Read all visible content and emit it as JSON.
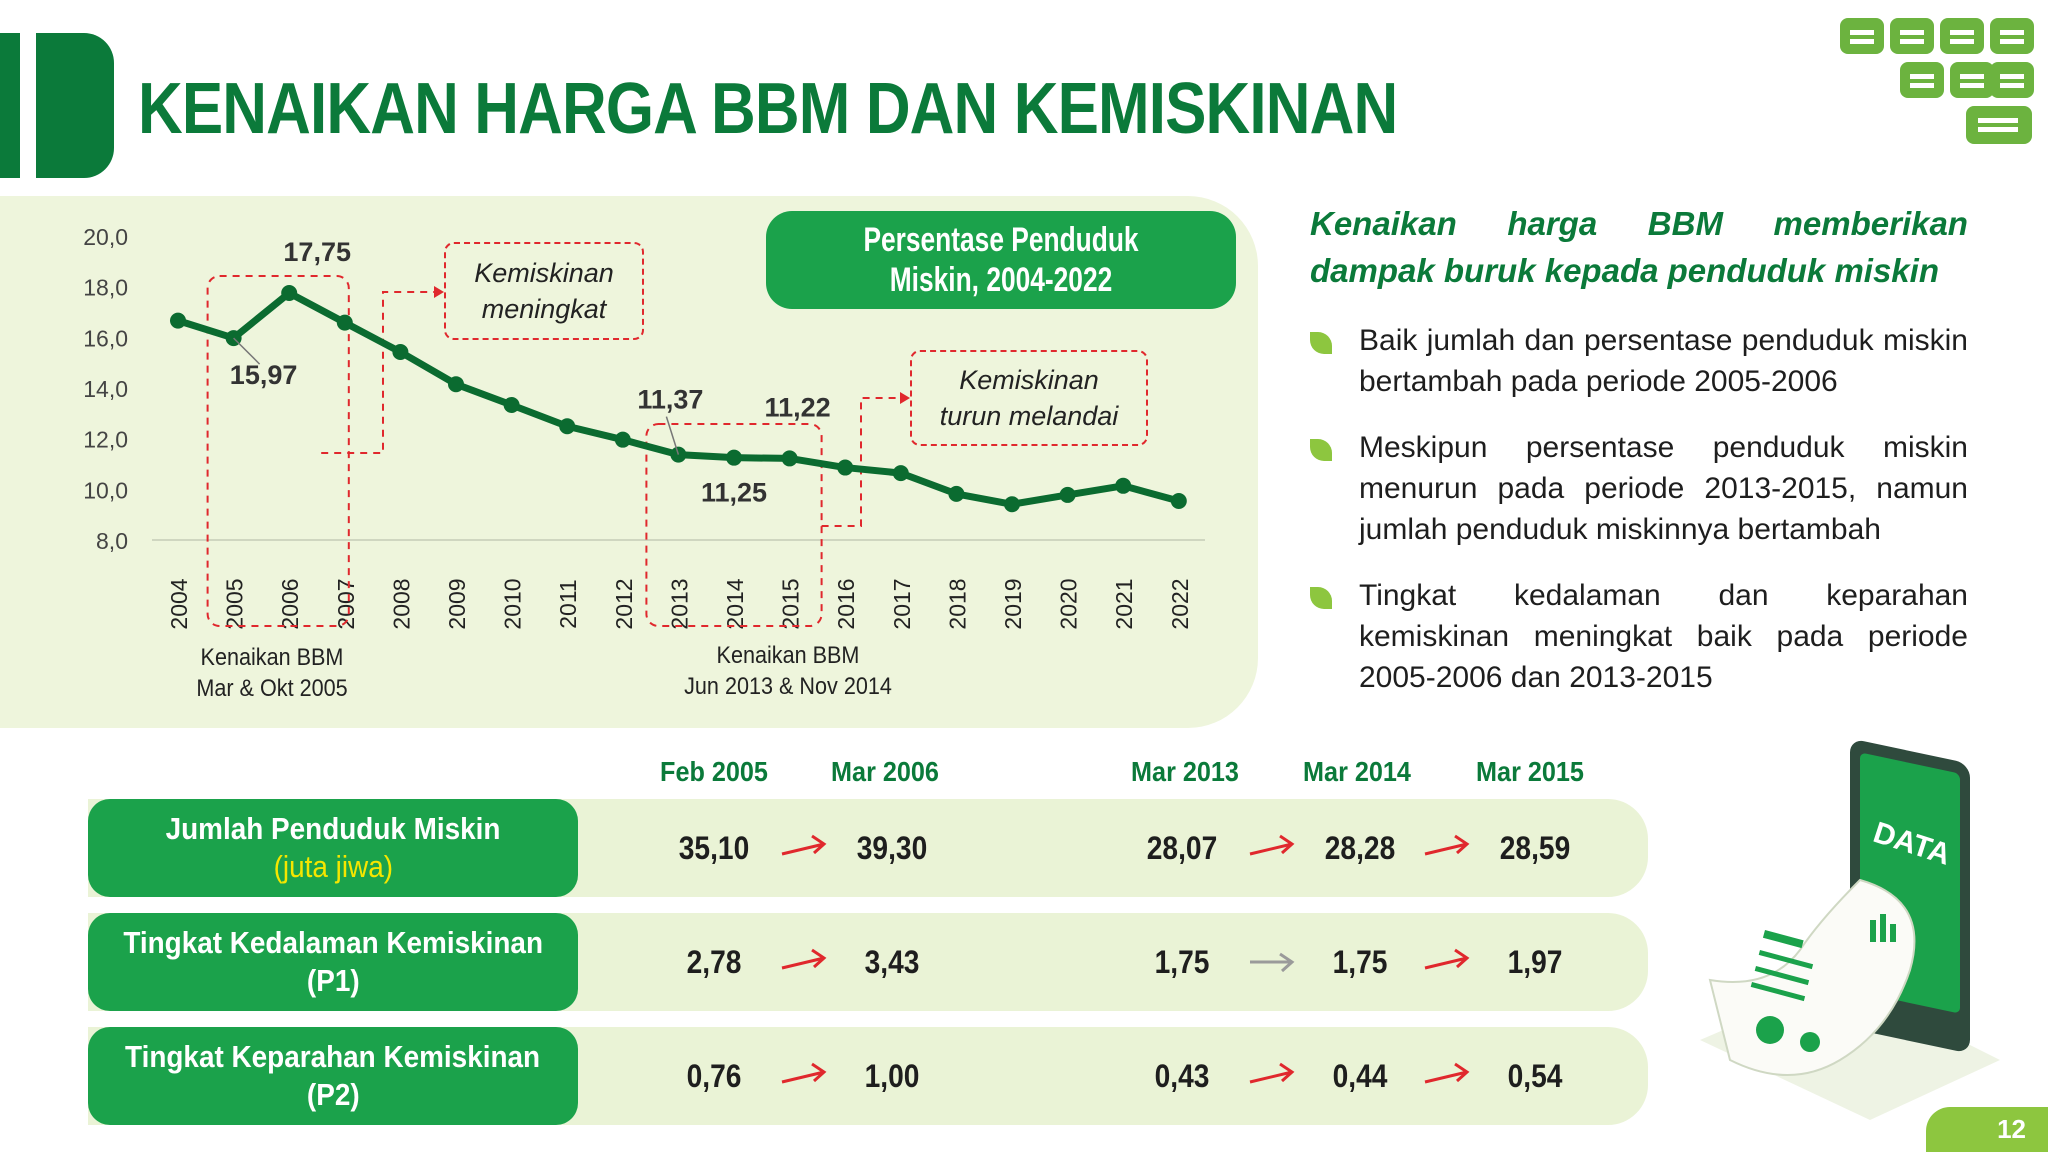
{
  "title": "KENAIKAN HARGA BBM DAN KEMISKINAN",
  "page_number": "12",
  "colors": {
    "dark_green": "#0b7a3a",
    "green": "#1ba24b",
    "light_green": "#8dc63f",
    "panel": "#eef5dc",
    "red_dash": "#e0282d",
    "yellow": "#f5e600"
  },
  "chart_data": {
    "type": "line",
    "title": "Persentase Penduduk Miskin, 2004-2022",
    "x": [
      "2004",
      "2005",
      "2006",
      "2007",
      "2008",
      "2009",
      "2010",
      "2011",
      "2012",
      "2013",
      "2014",
      "2015",
      "2016",
      "2017",
      "2018",
      "2019",
      "2020",
      "2021",
      "2022"
    ],
    "series": [
      {
        "values": [
          16.66,
          15.97,
          17.75,
          16.58,
          15.42,
          14.15,
          13.33,
          12.49,
          11.96,
          11.37,
          11.25,
          11.22,
          10.86,
          10.64,
          9.82,
          9.41,
          9.78,
          10.14,
          9.54
        ]
      }
    ],
    "ylim": [
      8.0,
      20.0
    ],
    "yticks": [
      "20,0",
      "18,0",
      "16,0",
      "14,0",
      "12,0",
      "10,0",
      "8,0"
    ],
    "data_labels": [
      {
        "x": "2005",
        "text": "15,97"
      },
      {
        "x": "2006",
        "text": "17,75"
      },
      {
        "x": "2013",
        "text": "11,37"
      },
      {
        "x": "2014",
        "text": "11,25"
      },
      {
        "x": "2015",
        "text": "11,22"
      }
    ],
    "annotations": {
      "note1": [
        "Kemiskinan",
        "meningkat"
      ],
      "note2": [
        "Kemiskinan",
        "turun melandai"
      ],
      "bbm1": [
        "Kenaikan BBM",
        "Mar & Okt 2005"
      ],
      "bbm2": [
        "Kenaikan BBM",
        "Jun 2013 & Nov 2014"
      ]
    }
  },
  "right_panel": {
    "heading_line1": [
      "Kenaikan",
      "harga",
      "BBM",
      "memberikan"
    ],
    "heading_line2": "dampak buruk kepada penduduk miskin",
    "bullets": [
      "Baik jumlah dan persentase penduduk miskin bertambah pada periode 2005-2006",
      "Meskipun persentase penduduk miskin menurun pada periode 2013-2015, namun jumlah penduduk miskinnya bertambah",
      "Tingkat kedalaman dan keparahan kemiskinan meningkat baik pada periode 2005-2006 dan 2013-2015"
    ]
  },
  "table": {
    "columns": [
      "Feb 2005",
      "Mar 2006",
      "Mar 2013",
      "Mar 2014",
      "Mar 2015"
    ],
    "rows": [
      {
        "label": "Jumlah Penduduk Miskin",
        "sub": "(juta jiwa)",
        "values": [
          "35,10",
          "39,30",
          "28,07",
          "28,28",
          "28,59"
        ],
        "arrows": [
          "up",
          "up",
          "up"
        ]
      },
      {
        "label": "Tingkat Kedalaman Kemiskinan",
        "sub": "(P1)",
        "values": [
          "2,78",
          "3,43",
          "1,75",
          "1,75",
          "1,97"
        ],
        "arrows": [
          "up",
          "flat",
          "up"
        ]
      },
      {
        "label": "Tingkat Keparahan Kemiskinan",
        "sub": "(P2)",
        "values": [
          "0,76",
          "1,00",
          "0,43",
          "0,44",
          "0,54"
        ],
        "arrows": [
          "up",
          "up",
          "up"
        ]
      }
    ]
  },
  "illustration": {
    "screen_text": "DATA"
  }
}
